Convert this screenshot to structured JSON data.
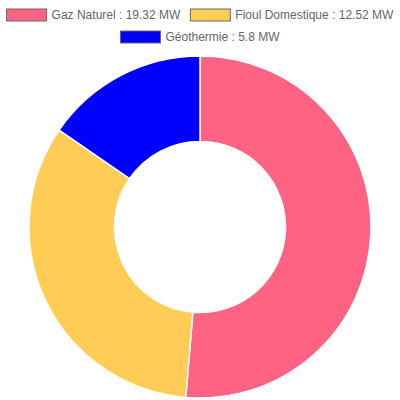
{
  "chart_data": {
    "type": "pie",
    "categories": [
      "Gaz Naturel : 19.32 MW",
      "Fioul Domestique : 12.52 MW",
      "Géothermie : 5.8 MW"
    ],
    "values": [
      19.32,
      12.52,
      5.8
    ],
    "colors": [
      "#ff6384",
      "#ffcd56",
      "#0000ff"
    ],
    "legend": "top"
  }
}
